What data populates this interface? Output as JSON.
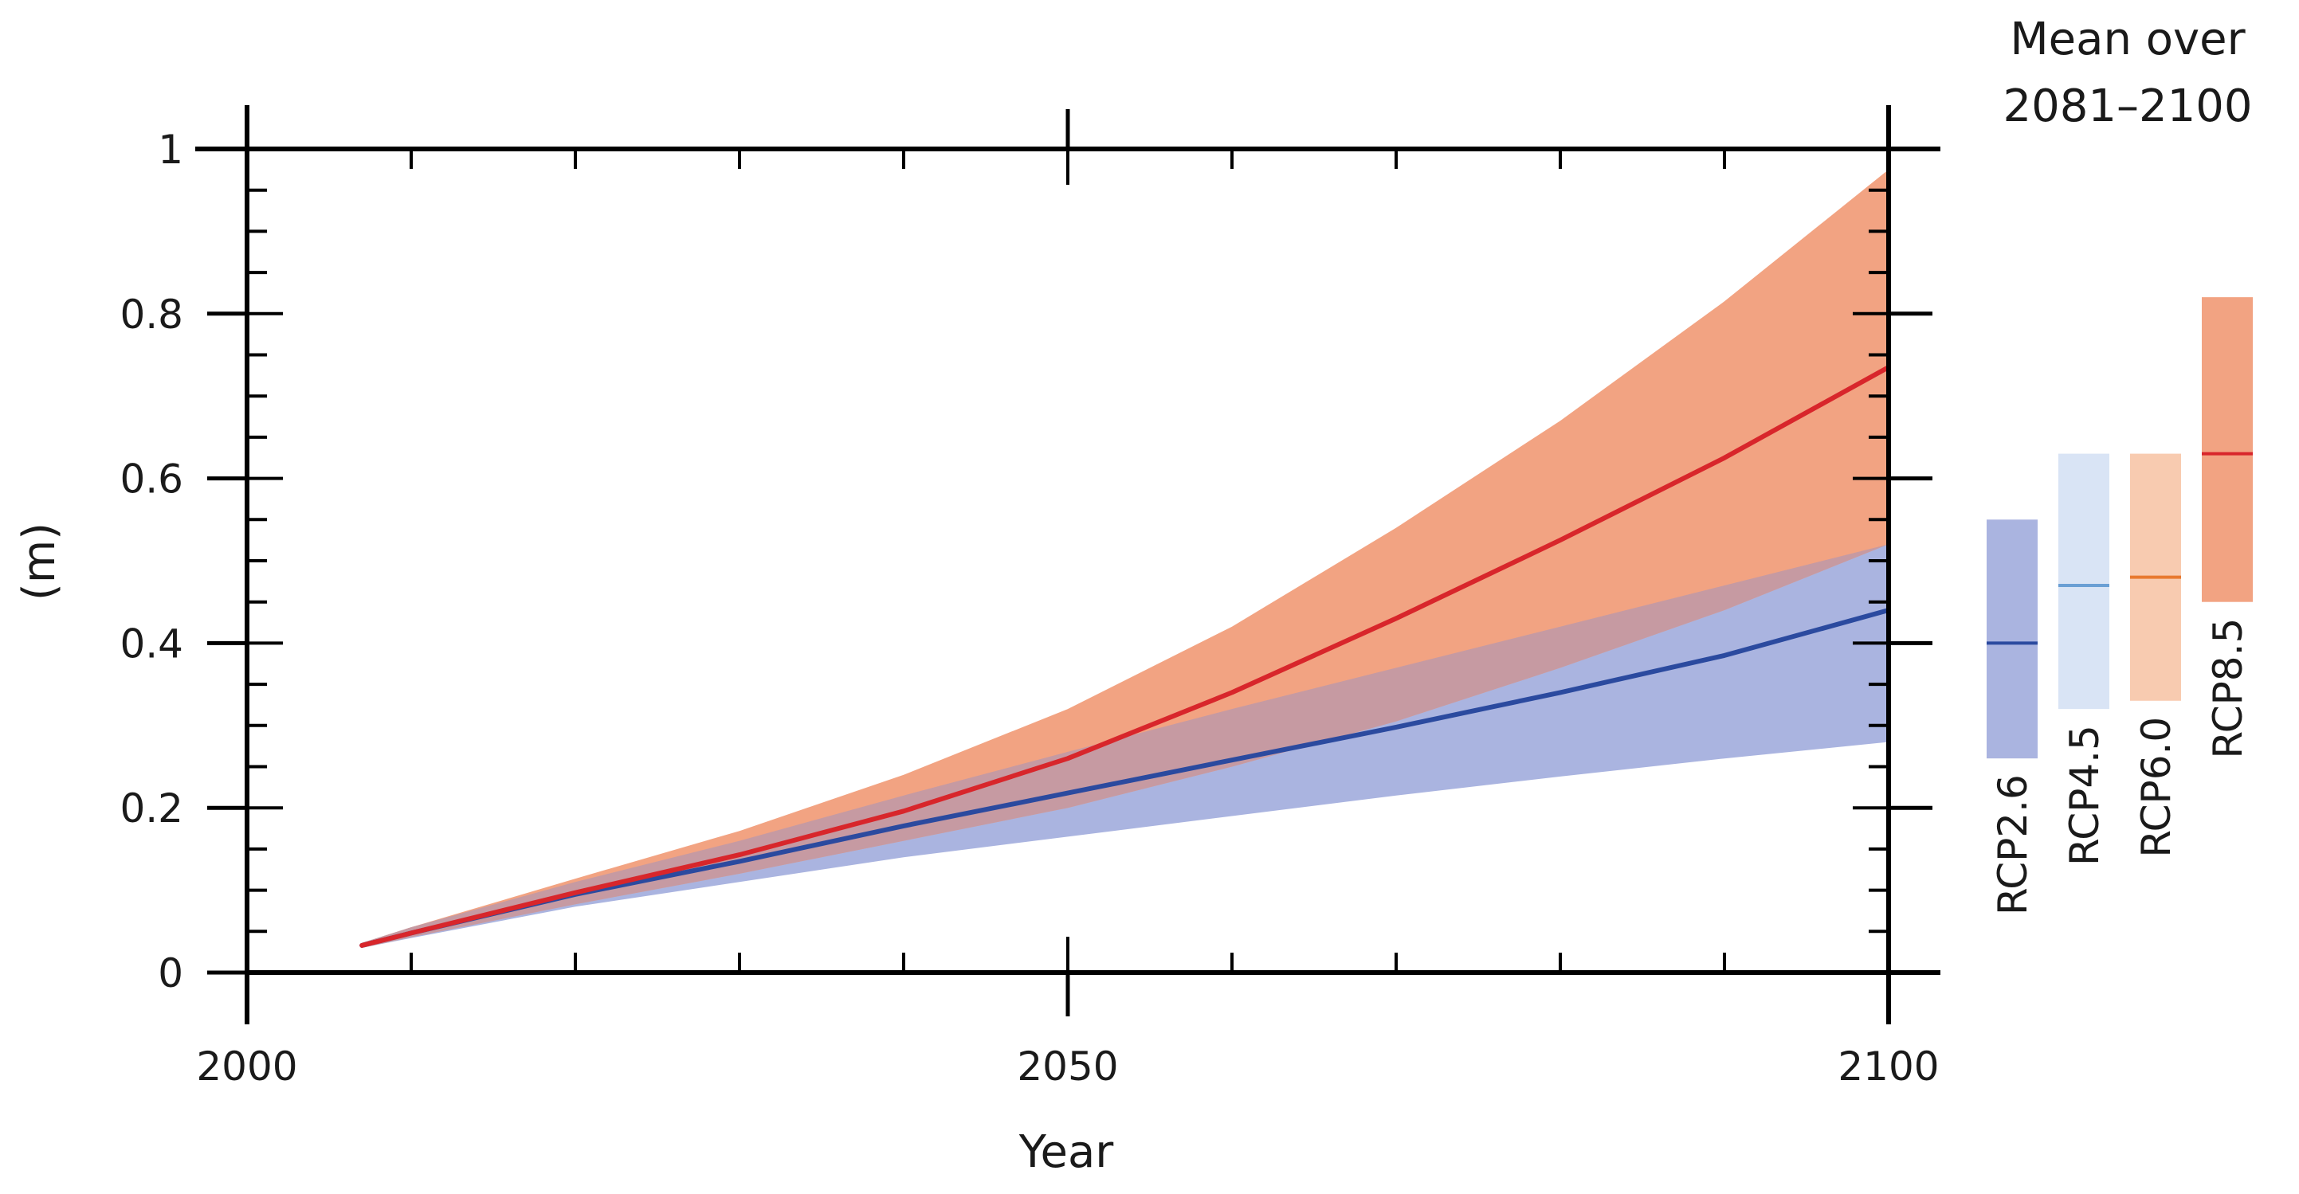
{
  "chart_data": {
    "type": "line",
    "title": "",
    "xlabel": "Year",
    "ylabel": "(m)",
    "xlim": [
      2000,
      2100
    ],
    "ylim": [
      0,
      1
    ],
    "x_ticks": [
      "2000",
      "2050",
      "2100"
    ],
    "y_ticks": [
      "0",
      "0.2",
      "0.4",
      "0.6",
      "0.8",
      "1"
    ],
    "x_minor_step": 10,
    "y_minor_step": 0.05,
    "grid": false,
    "series": [
      {
        "color": "#2b4a9f",
        "band_color": "#aab4e0",
        "x": [
          2007,
          2010,
          2020,
          2030,
          2040,
          2050,
          2060,
          2070,
          2080,
          2090,
          2100
        ],
        "values": [
          0.033,
          0.048,
          0.095,
          0.135,
          0.178,
          0.218,
          0.258,
          0.298,
          0.34,
          0.385,
          0.44
        ],
        "lower": [
          0.03,
          0.042,
          0.08,
          0.11,
          0.14,
          0.165,
          0.19,
          0.215,
          0.238,
          0.26,
          0.28
        ],
        "upper": [
          0.036,
          0.055,
          0.11,
          0.16,
          0.215,
          0.268,
          0.32,
          0.37,
          0.42,
          0.47,
          0.52
        ]
      },
      {
        "color": "#d8262b",
        "band_color": "#f2a382",
        "x": [
          2007,
          2010,
          2020,
          2030,
          2040,
          2050,
          2060,
          2070,
          2080,
          2090,
          2100
        ],
        "values": [
          0.033,
          0.048,
          0.097,
          0.143,
          0.196,
          0.26,
          0.34,
          0.43,
          0.525,
          0.625,
          0.735
        ],
        "lower": [
          0.03,
          0.043,
          0.083,
          0.12,
          0.16,
          0.2,
          0.25,
          0.305,
          0.37,
          0.44,
          0.52
        ],
        "upper": [
          0.036,
          0.055,
          0.114,
          0.172,
          0.24,
          0.32,
          0.42,
          0.54,
          0.67,
          0.815,
          0.975
        ]
      },
      {
        "color": "#7a4a6e",
        "band_color": "#c69aa2",
        "x": [
          2007,
          2010,
          2020,
          2030,
          2040,
          2050,
          2060,
          2070,
          2080,
          2090,
          2100
        ],
        "lower": [
          0.03,
          0.043,
          0.083,
          0.12,
          0.16,
          0.2,
          0.25,
          0.305,
          0.37,
          0.44,
          0.52
        ],
        "upper": [
          0.036,
          0.055,
          0.11,
          0.16,
          0.215,
          0.268,
          0.32,
          0.37,
          0.42,
          0.47,
          0.52
        ]
      }
    ],
    "side_panel": {
      "title_line1": "Mean over",
      "title_line2": "2081–2100",
      "bars": [
        {
          "label": "RCP2.6",
          "low": 0.26,
          "high": 0.55,
          "median": 0.4,
          "fill": "#aab4e0",
          "line": "#2b4a9f"
        },
        {
          "label": "RCP4.5",
          "low": 0.32,
          "high": 0.63,
          "median": 0.47,
          "fill": "#d9e4f5",
          "line": "#6a9fd4"
        },
        {
          "label": "RCP6.0",
          "low": 0.33,
          "high": 0.63,
          "median": 0.48,
          "fill": "#f8cbb0",
          "line": "#e8792f"
        },
        {
          "label": "RCP8.5",
          "low": 0.45,
          "high": 0.82,
          "median": 0.63,
          "fill": "#f2a382",
          "line": "#d8262b"
        }
      ]
    }
  }
}
